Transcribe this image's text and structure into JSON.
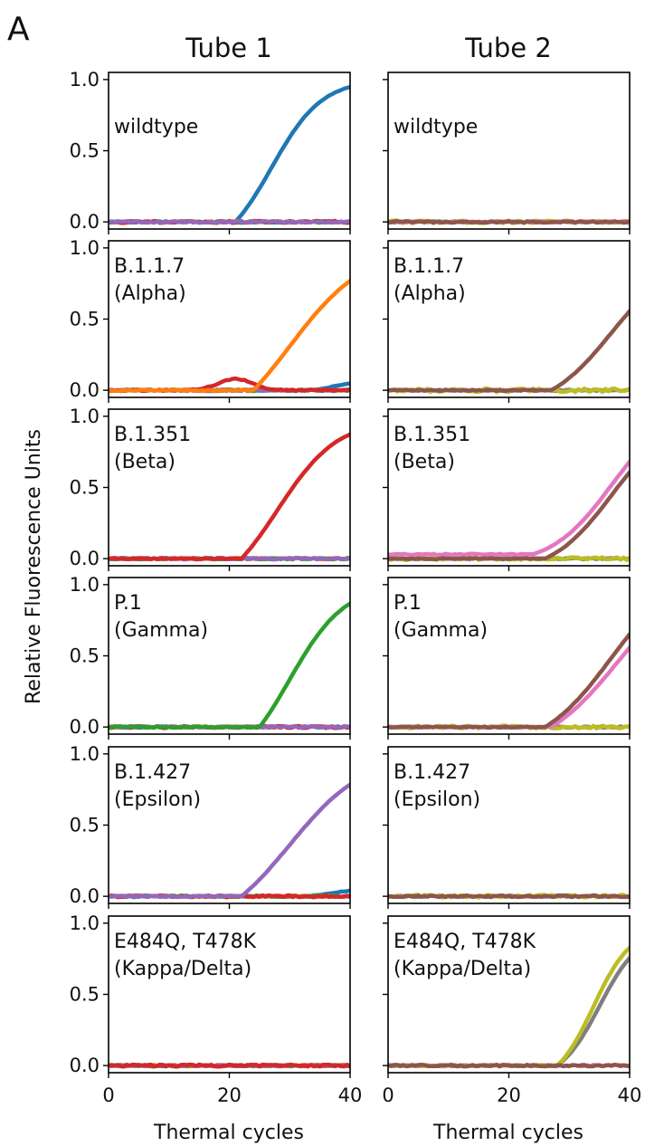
{
  "figure": {
    "panel_letter": "A",
    "ylabel": "Relative Fluorescence Units",
    "xlabel": "Thermal cycles",
    "columns": [
      "Tube 1",
      "Tube 2"
    ],
    "rows": [
      [
        "wildtype"
      ],
      [
        "B.1.1.7",
        "(Alpha)"
      ],
      [
        "B.1.351",
        "(Beta)"
      ],
      [
        "P.1",
        "(Gamma)"
      ],
      [
        "B.1.427",
        "(Epsilon)"
      ],
      [
        "E484Q, T478K",
        "(Kappa/Delta)"
      ]
    ],
    "colors": {
      "blue": "#1f77b4",
      "orange": "#ff7f0e",
      "green": "#2ca02c",
      "red": "#d62728",
      "purple": "#9467bd",
      "brown": "#8c564b",
      "pink": "#e377c2",
      "gray": "#7f7f7f",
      "olive": "#bcbd22"
    }
  },
  "chart_data": {
    "type": "line",
    "xlim": [
      0,
      40
    ],
    "ylim": [
      -0.05,
      1.05
    ],
    "xticks": [
      0,
      20,
      40
    ],
    "yticks": [
      0.0,
      0.5,
      1.0
    ],
    "ytick_labels": [
      "0.0",
      "0.5",
      "1.0"
    ],
    "grid": false,
    "panels": [
      {
        "row": 0,
        "col": 0,
        "series": [
          {
            "color": "blue",
            "curve": "sigmoid",
            "ct": 21,
            "mid": 27,
            "k": 0.24,
            "max": 1.0
          },
          {
            "color": "orange",
            "curve": "flat",
            "noise": 0.012
          },
          {
            "color": "green",
            "curve": "flat",
            "noise": 0.012
          },
          {
            "color": "red",
            "curve": "flat",
            "noise": 0.015
          },
          {
            "color": "purple",
            "curve": "flat",
            "noise": 0.012
          }
        ]
      },
      {
        "row": 0,
        "col": 1,
        "series": [
          {
            "color": "gray",
            "curve": "flat",
            "noise": 0.01
          },
          {
            "color": "olive",
            "curve": "flat",
            "noise": 0.02
          },
          {
            "color": "pink",
            "curve": "flat",
            "noise": 0.01
          },
          {
            "color": "brown",
            "curve": "flat",
            "noise": 0.012
          }
        ]
      },
      {
        "row": 1,
        "col": 0,
        "series": [
          {
            "color": "blue",
            "curve": "late",
            "ct": 34,
            "max": 0.05
          },
          {
            "color": "green",
            "curve": "flat",
            "noise": 0.012
          },
          {
            "color": "purple",
            "curve": "flat",
            "noise": 0.012
          },
          {
            "color": "red",
            "curve": "bump",
            "ct": 21,
            "max": 0.08
          },
          {
            "color": "orange",
            "curve": "sigmoid",
            "ct": 24,
            "mid": 30,
            "k": 0.16,
            "max": 1.0
          }
        ]
      },
      {
        "row": 1,
        "col": 1,
        "series": [
          {
            "color": "gray",
            "curve": "flat",
            "noise": 0.01
          },
          {
            "color": "olive",
            "curve": "flat",
            "noise": 0.025
          },
          {
            "color": "brown",
            "curve": "sigmoid",
            "ct": 27,
            "mid": 37,
            "k": 0.19,
            "max": 0.95
          }
        ]
      },
      {
        "row": 2,
        "col": 0,
        "series": [
          {
            "color": "blue",
            "curve": "flat",
            "noise": 0.01
          },
          {
            "color": "orange",
            "curve": "flat",
            "noise": 0.01
          },
          {
            "color": "green",
            "curve": "flat",
            "noise": 0.012
          },
          {
            "color": "purple",
            "curve": "flat",
            "noise": 0.012
          },
          {
            "color": "red",
            "curve": "sigmoid",
            "ct": 22,
            "mid": 28,
            "k": 0.2,
            "max": 0.98
          }
        ]
      },
      {
        "row": 2,
        "col": 1,
        "series": [
          {
            "color": "gray",
            "curve": "flat",
            "noise": 0.01
          },
          {
            "color": "olive",
            "curve": "flat",
            "noise": 0.02
          },
          {
            "color": "pink",
            "curve": "sigmoid",
            "ct": 24,
            "mid": 37,
            "k": 0.2,
            "max": 1.05,
            "offset": 0.03
          },
          {
            "color": "brown",
            "curve": "sigmoid",
            "ct": 26,
            "mid": 37,
            "k": 0.2,
            "max": 1.0
          }
        ]
      },
      {
        "row": 3,
        "col": 0,
        "series": [
          {
            "color": "blue",
            "curve": "flat",
            "noise": 0.01
          },
          {
            "color": "orange",
            "curve": "flat",
            "noise": 0.01
          },
          {
            "color": "red",
            "curve": "flat",
            "noise": 0.015
          },
          {
            "color": "purple",
            "curve": "flat",
            "noise": 0.012
          },
          {
            "color": "green",
            "curve": "sigmoid",
            "ct": 25,
            "mid": 30,
            "k": 0.22,
            "max": 1.0
          }
        ]
      },
      {
        "row": 3,
        "col": 1,
        "series": [
          {
            "color": "gray",
            "curve": "flat",
            "noise": 0.01
          },
          {
            "color": "olive",
            "curve": "flat",
            "noise": 0.02
          },
          {
            "color": "pink",
            "curve": "sigmoid",
            "ct": 27,
            "mid": 38,
            "k": 0.16,
            "max": 1.1
          },
          {
            "color": "brown",
            "curve": "sigmoid",
            "ct": 26,
            "mid": 37,
            "k": 0.17,
            "max": 1.15
          }
        ]
      },
      {
        "row": 4,
        "col": 0,
        "series": [
          {
            "color": "blue",
            "curve": "late",
            "ct": 33,
            "max": 0.04
          },
          {
            "color": "orange",
            "curve": "flat",
            "noise": 0.01
          },
          {
            "color": "green",
            "curve": "flat",
            "noise": 0.012
          },
          {
            "color": "red",
            "curve": "flat",
            "noise": 0.015
          },
          {
            "color": "purple",
            "curve": "sigmoid",
            "ct": 22,
            "mid": 30,
            "k": 0.16,
            "max": 1.0
          }
        ]
      },
      {
        "row": 4,
        "col": 1,
        "series": [
          {
            "color": "gray",
            "curve": "flat",
            "noise": 0.01
          },
          {
            "color": "olive",
            "curve": "flat",
            "noise": 0.02
          },
          {
            "color": "brown",
            "curve": "flat",
            "noise": 0.012
          }
        ]
      },
      {
        "row": 5,
        "col": 0,
        "series": [
          {
            "color": "blue",
            "curve": "flat",
            "noise": 0.01
          },
          {
            "color": "orange",
            "curve": "flat",
            "noise": 0.01
          },
          {
            "color": "green",
            "curve": "flat",
            "noise": 0.012
          },
          {
            "color": "purple",
            "curve": "flat",
            "noise": 0.012
          },
          {
            "color": "red",
            "curve": "flat",
            "noise": 0.015
          }
        ]
      },
      {
        "row": 5,
        "col": 1,
        "series": [
          {
            "color": "pink",
            "curve": "flat",
            "noise": 0.012
          },
          {
            "color": "gray",
            "curve": "sigmoid",
            "ct": 28,
            "mid": 35,
            "k": 0.3,
            "max": 0.95
          },
          {
            "color": "olive",
            "curve": "sigmoid",
            "ct": 28,
            "mid": 34,
            "k": 0.32,
            "max": 0.97
          },
          {
            "color": "brown",
            "curve": "flat",
            "noise": 0.012
          }
        ]
      }
    ]
  }
}
